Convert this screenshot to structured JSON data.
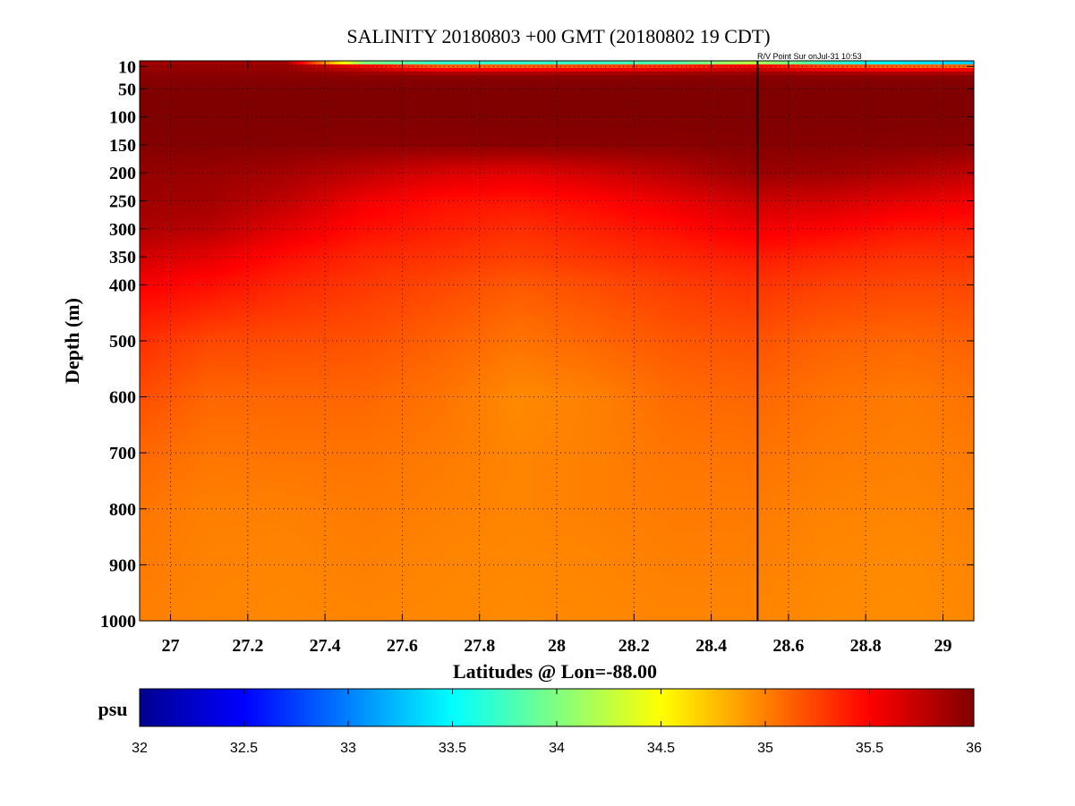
{
  "chart_data": {
    "type": "heatmap",
    "title": "SALINITY 20180803 +00 GMT (20180802 19 CDT)",
    "annotation": "R/V Point Sur onJul-31 10:53",
    "xlabel": "Latitudes @ Lon=-88.00",
    "ylabel": "Depth (m)",
    "xlim": [
      26.92,
      29.08
    ],
    "ylim": [
      1000,
      0
    ],
    "x_ticks": [
      27,
      27.2,
      27.4,
      27.6,
      27.8,
      28,
      28.2,
      28.4,
      28.6,
      28.8,
      29
    ],
    "x_tick_labels": [
      "27",
      "27.2",
      "27.4",
      "27.6",
      "27.8",
      "28",
      "28.2",
      "28.4",
      "28.6",
      "28.8",
      "29"
    ],
    "y_ticks": [
      10,
      50,
      100,
      150,
      200,
      250,
      300,
      350,
      400,
      500,
      600,
      700,
      800,
      900,
      1000
    ],
    "y_tick_labels": [
      "10",
      "50",
      "100",
      "150",
      "200",
      "250",
      "300",
      "350",
      "400",
      "500",
      "600",
      "700",
      "800",
      "900",
      "1000"
    ],
    "grid": true,
    "vertical_marker_lat": 28.52,
    "colorbar": {
      "label": "psu",
      "min": 32,
      "max": 36,
      "ticks": [
        32,
        32.5,
        33,
        33.5,
        34,
        34.5,
        35,
        35.5,
        36
      ],
      "tick_labels": [
        "32",
        "32.5",
        "33",
        "33.5",
        "34",
        "34.5",
        "35",
        "35.5",
        "36"
      ],
      "colormap": "jet"
    },
    "grid_lats": [
      26.92,
      27.1,
      27.3,
      27.5,
      27.7,
      27.9,
      28.1,
      28.3,
      28.5,
      28.7,
      28.9,
      29.08
    ],
    "grid_depths": [
      0,
      10,
      25,
      50,
      100,
      150,
      200,
      250,
      300,
      350,
      400,
      500,
      600,
      700,
      800,
      900,
      1000
    ],
    "values": [
      [
        35.85,
        35.85,
        35.85,
        33.3,
        33.0,
        33.0,
        33.0,
        33.1,
        33.6,
        33.0,
        32.6,
        32.4
      ],
      [
        35.9,
        35.9,
        35.9,
        35.6,
        35.2,
        35.2,
        35.3,
        35.4,
        35.6,
        35.3,
        35.2,
        35.2
      ],
      [
        35.95,
        35.95,
        35.95,
        35.95,
        35.95,
        35.95,
        35.95,
        35.95,
        35.95,
        35.95,
        35.95,
        35.95
      ],
      [
        36.0,
        36.0,
        36.0,
        36.0,
        36.0,
        36.0,
        36.0,
        36.0,
        36.0,
        36.0,
        36.0,
        36.0
      ],
      [
        36.0,
        36.0,
        36.0,
        36.0,
        36.0,
        36.0,
        36.0,
        36.0,
        36.0,
        36.0,
        36.0,
        36.0
      ],
      [
        35.98,
        35.98,
        35.97,
        35.95,
        35.95,
        35.96,
        35.96,
        35.96,
        35.97,
        35.97,
        35.96,
        35.95
      ],
      [
        35.92,
        35.9,
        35.85,
        35.75,
        35.65,
        35.6,
        35.68,
        35.78,
        35.9,
        35.88,
        35.82,
        35.75
      ],
      [
        35.88,
        35.86,
        35.75,
        35.55,
        35.45,
        35.42,
        35.48,
        35.58,
        35.7,
        35.68,
        35.6,
        35.55
      ],
      [
        35.82,
        35.78,
        35.6,
        35.45,
        35.38,
        35.32,
        35.38,
        35.45,
        35.55,
        35.5,
        35.42,
        35.4
      ],
      [
        35.68,
        35.6,
        35.45,
        35.35,
        35.3,
        35.25,
        35.3,
        35.35,
        35.4,
        35.35,
        35.3,
        35.3
      ],
      [
        35.52,
        35.45,
        35.35,
        35.28,
        35.22,
        35.15,
        35.2,
        35.26,
        35.3,
        35.25,
        35.22,
        35.22
      ],
      [
        35.32,
        35.22,
        35.2,
        35.18,
        35.12,
        35.05,
        35.1,
        35.16,
        35.18,
        35.12,
        35.1,
        35.12
      ],
      [
        35.2,
        35.1,
        35.1,
        35.1,
        35.05,
        34.96,
        35.0,
        35.08,
        35.1,
        35.05,
        35.02,
        35.05
      ],
      [
        35.1,
        35.04,
        35.05,
        35.05,
        35.02,
        34.98,
        35.0,
        35.04,
        35.05,
        35.02,
        35.0,
        35.02
      ],
      [
        35.04,
        35.0,
        35.0,
        35.02,
        35.0,
        34.98,
        35.0,
        35.02,
        35.02,
        34.99,
        34.98,
        35.0
      ],
      [
        35.02,
        34.99,
        34.98,
        35.0,
        34.98,
        34.97,
        34.98,
        35.0,
        35.0,
        34.97,
        34.96,
        34.98
      ],
      [
        35.0,
        34.98,
        34.97,
        34.98,
        34.97,
        34.96,
        34.97,
        34.98,
        34.98,
        34.96,
        34.95,
        34.97
      ]
    ]
  }
}
